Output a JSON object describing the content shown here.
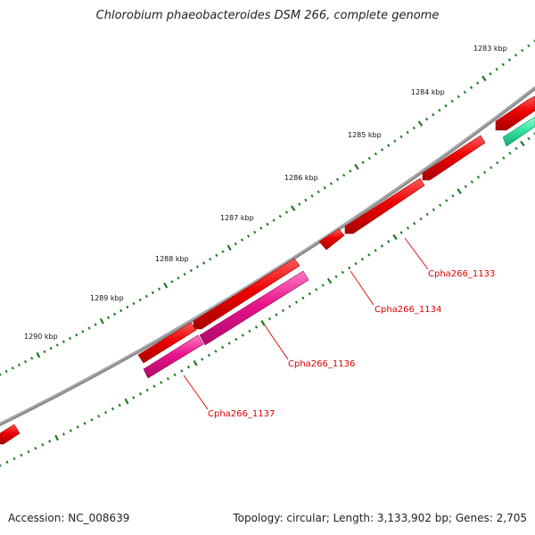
{
  "title": "Chlorobium phaeobacteroides DSM 266, complete genome",
  "accession_text": "Accession: NC_008639",
  "info_text": "Topology: circular; Length: 3,133,902 bp; Genes: 2,705",
  "colors": {
    "backbone": "#808080",
    "cds_forward": "#ee0000",
    "cds_reverse": "#e8138a",
    "rna": "#33e6a0",
    "tick": "#1a7a1a",
    "gene_label": "#dd0000"
  },
  "axis": {
    "unit": "kbp",
    "major_ticks": [
      "1283 kbp",
      "1284 kbp",
      "1285 kbp",
      "1286 kbp",
      "1287 kbp",
      "1288 kbp",
      "1289 kbp",
      "1290 kbp"
    ]
  },
  "gene_labels": [
    "Cpha266_1133",
    "Cpha266_1134",
    "Cpha266_1136",
    "Cpha266_1137"
  ]
}
